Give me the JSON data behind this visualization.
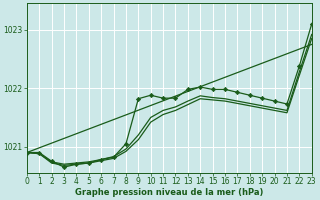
{
  "background_color": "#cce8e8",
  "grid_color": "#ffffff",
  "line_color": "#1a5c1a",
  "title": "Graphe pression niveau de la mer (hPa)",
  "xlim": [
    0,
    23
  ],
  "ylim": [
    1020.55,
    1023.45
  ],
  "yticks": [
    1021,
    1022,
    1023
  ],
  "xticks": [
    0,
    1,
    2,
    3,
    4,
    5,
    6,
    7,
    8,
    9,
    10,
    11,
    12,
    13,
    14,
    15,
    16,
    17,
    18,
    19,
    20,
    21,
    22,
    23
  ],
  "series": [
    {
      "x": [
        0,
        1,
        2,
        3,
        4,
        5,
        6,
        7,
        8,
        9,
        10,
        11,
        12,
        13,
        14,
        15,
        16,
        17,
        18,
        19,
        20,
        21,
        22,
        23
      ],
      "y": [
        1020.9,
        1020.9,
        1020.75,
        1020.65,
        1020.7,
        1020.72,
        1020.78,
        1020.82,
        1021.05,
        1021.82,
        1021.88,
        1021.83,
        1021.83,
        1021.98,
        1022.02,
        1021.98,
        1021.98,
        1021.93,
        1021.88,
        1021.83,
        1021.78,
        1021.73,
        1022.38,
        1023.1
      ],
      "marker": "D",
      "markersize": 2.2,
      "linewidth": 0.9,
      "zorder": 4
    },
    {
      "x": [
        0,
        1,
        2,
        3,
        4,
        5,
        6,
        7,
        8,
        9,
        10,
        11,
        12,
        13,
        14,
        15,
        16,
        17,
        18,
        19,
        20,
        21,
        22,
        23
      ],
      "y": [
        1020.9,
        1020.88,
        1020.72,
        1020.68,
        1020.7,
        1020.72,
        1020.76,
        1020.8,
        1020.92,
        1021.12,
        1021.42,
        1021.55,
        1021.62,
        1021.72,
        1021.82,
        1021.8,
        1021.78,
        1021.74,
        1021.7,
        1021.66,
        1021.62,
        1021.58,
        1022.22,
        1022.85
      ],
      "marker": null,
      "markersize": 0,
      "linewidth": 0.9,
      "zorder": 3
    },
    {
      "x": [
        0,
        1,
        2,
        3,
        4,
        5,
        6,
        7,
        8,
        9,
        10,
        11,
        12,
        13,
        14,
        15,
        16,
        17,
        18,
        19,
        20,
        21,
        22,
        23
      ],
      "y": [
        1020.9,
        1020.88,
        1020.74,
        1020.7,
        1020.72,
        1020.74,
        1020.78,
        1020.83,
        1020.96,
        1021.2,
        1021.5,
        1021.62,
        1021.68,
        1021.78,
        1021.87,
        1021.84,
        1021.82,
        1021.78,
        1021.74,
        1021.7,
        1021.66,
        1021.62,
        1022.28,
        1022.92
      ],
      "marker": null,
      "markersize": 0,
      "linewidth": 0.9,
      "zorder": 3
    },
    {
      "x": [
        0,
        23
      ],
      "y": [
        1020.9,
        1022.75
      ],
      "marker": null,
      "markersize": 0,
      "linewidth": 0.9,
      "zorder": 2
    }
  ],
  "figsize": [
    3.2,
    2.0
  ],
  "dpi": 100,
  "tick_labelsize": 5.5,
  "xlabel_fontsize": 6.0,
  "xlabel_fontweight": "bold"
}
